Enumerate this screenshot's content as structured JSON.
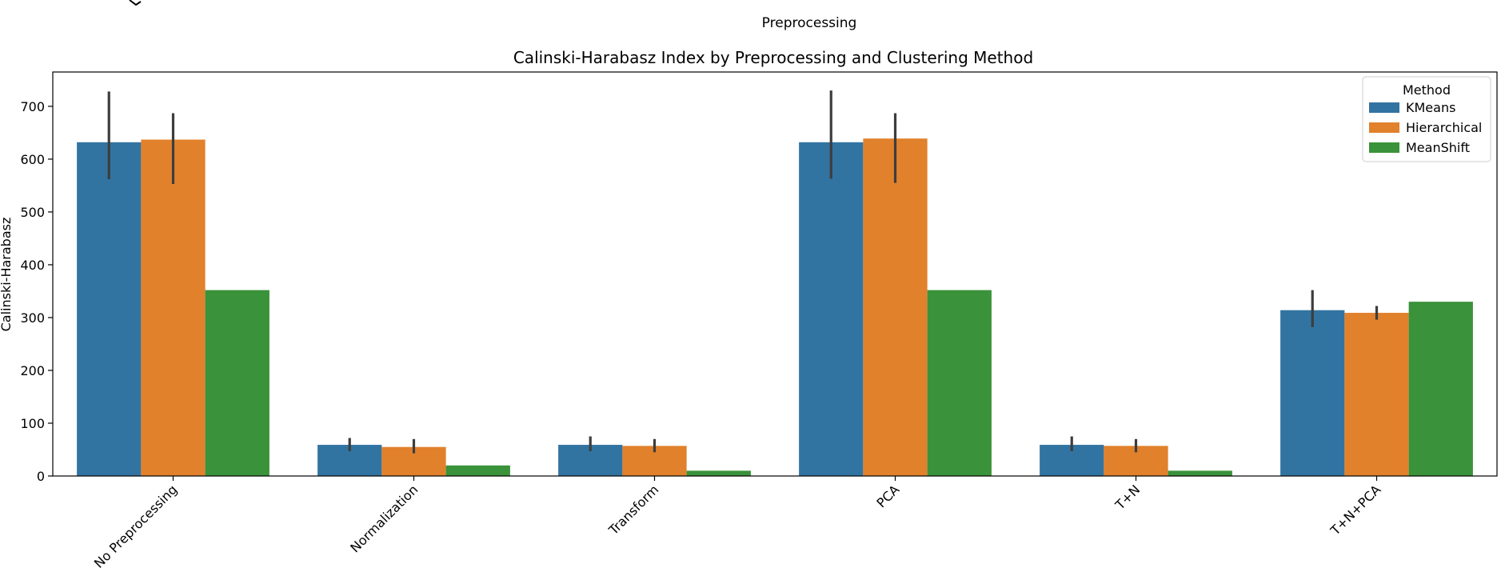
{
  "top_fragment": {
    "xlabel": "Preprocessing"
  },
  "chart_data": {
    "type": "bar",
    "title": "Calinski-Harabasz Index by Preprocessing and Clustering Method",
    "xlabel": "",
    "ylabel": "Calinski-Harabasz",
    "ylim": [
      0,
      765
    ],
    "yticks": [
      0,
      100,
      200,
      300,
      400,
      500,
      600,
      700
    ],
    "categories": [
      "No Preprocessing",
      "Normalization",
      "Transform",
      "PCA",
      "T+N",
      "T+N+PCA"
    ],
    "legend": {
      "title": "Method",
      "position": "top-right"
    },
    "grid": false,
    "series": [
      {
        "name": "KMeans",
        "color": "#3274a1",
        "values": [
          632,
          59,
          59,
          632,
          59,
          314
        ],
        "err_low": [
          562,
          47,
          47,
          563,
          47,
          282
        ],
        "err_high": [
          728,
          72,
          75,
          730,
          75,
          352
        ]
      },
      {
        "name": "Hierarchical",
        "color": "#e1812c",
        "values": [
          637,
          55,
          57,
          639,
          57,
          309
        ],
        "err_low": [
          553,
          43,
          45,
          555,
          45,
          296
        ],
        "err_high": [
          687,
          70,
          70,
          687,
          70,
          322
        ]
      },
      {
        "name": "MeanShift",
        "color": "#3a923a",
        "values": [
          352,
          20,
          10,
          352,
          10,
          330
        ]
      }
    ]
  }
}
